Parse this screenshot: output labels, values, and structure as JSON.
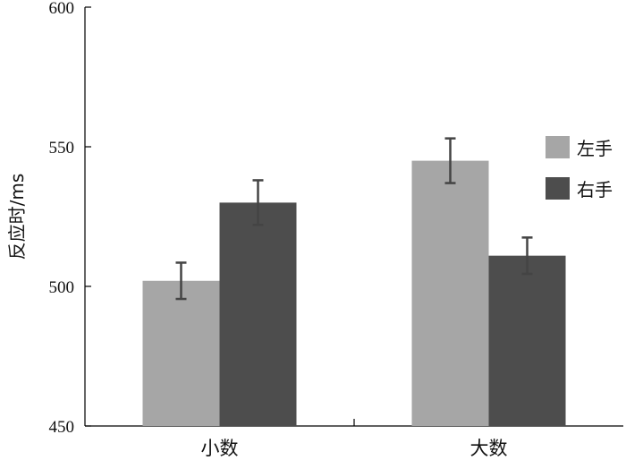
{
  "chart_data": {
    "type": "bar",
    "title": "",
    "xlabel": "",
    "ylabel": "反应时/ms",
    "categories": [
      "小数",
      "大数"
    ],
    "series": [
      {
        "name": "左手",
        "values": [
          502,
          545
        ],
        "errors": [
          6.5,
          8
        ],
        "color": "#a6a6a6"
      },
      {
        "name": "右手",
        "values": [
          530,
          511
        ],
        "errors": [
          8,
          6.5
        ],
        "color": "#4d4d4d"
      }
    ],
    "ylim": [
      450,
      600
    ],
    "yticks": [
      450,
      500,
      550,
      600
    ],
    "grid": false,
    "legend": "top-right"
  }
}
